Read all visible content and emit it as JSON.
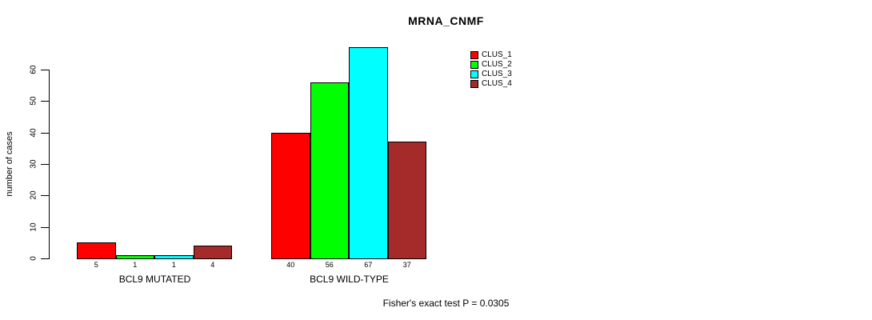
{
  "title": "MRNA_CNMF",
  "footer": "Fisher's exact test P = 0.0305",
  "y_axis": {
    "label": "number of cases",
    "ticks": [
      0,
      10,
      20,
      30,
      40,
      50,
      60
    ]
  },
  "legend": [
    {
      "label": "CLUS_1",
      "color": "#ff0000"
    },
    {
      "label": "CLUS_2",
      "color": "#00ff00"
    },
    {
      "label": "CLUS_3",
      "color": "#00ffff"
    },
    {
      "label": "CLUS_4",
      "color": "#a52a2a"
    }
  ],
  "chart_data": {
    "type": "bar",
    "title": "MRNA_CNMF",
    "xlabel": "",
    "ylabel": "number of cases",
    "ylim": [
      0,
      60
    ],
    "grid": false,
    "legend_position": "top-right",
    "categories": [
      "BCL9 MUTATED",
      "BCL9 WILD-TYPE"
    ],
    "series": [
      {
        "name": "CLUS_1",
        "color": "#ff0000",
        "values": [
          5,
          40
        ]
      },
      {
        "name": "CLUS_2",
        "color": "#00ff00",
        "values": [
          1,
          56
        ]
      },
      {
        "name": "CLUS_3",
        "color": "#00ffff",
        "values": [
          1,
          67
        ]
      },
      {
        "name": "CLUS_4",
        "color": "#a52a2a",
        "values": [
          4,
          37
        ]
      }
    ],
    "bar_value_labels": {
      "BCL9 MUTATED": [
        5,
        1,
        1,
        4
      ],
      "BCL9 WILD-TYPE": [
        40,
        56,
        67,
        37
      ]
    },
    "annotation": "Fisher's exact test P = 0.0305"
  }
}
